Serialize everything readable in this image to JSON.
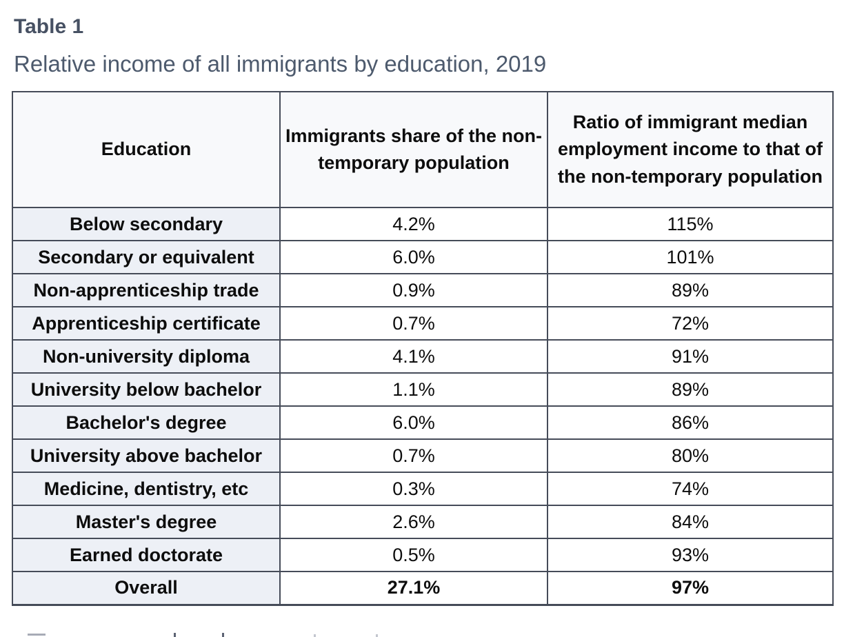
{
  "page": {
    "title": "Table 1",
    "subtitle": "Relative income of all immigrants by education, 2019"
  },
  "table": {
    "columns": [
      "Education",
      "Immigrants share of the non-temporary population",
      "Ratio of immigrant median employment income to that of the non-temporary population"
    ],
    "rows": [
      {
        "education": "Below secondary",
        "share": "4.2%",
        "ratio": "115%"
      },
      {
        "education": "Secondary or equivalent",
        "share": "6.0%",
        "ratio": "101%"
      },
      {
        "education": "Non-apprenticeship trade",
        "share": "0.9%",
        "ratio": "89%"
      },
      {
        "education": "Apprenticeship certificate",
        "share": "0.7%",
        "ratio": "72%"
      },
      {
        "education": "Non-university diploma",
        "share": "4.1%",
        "ratio": "91%"
      },
      {
        "education": "University below bachelor",
        "share": "1.1%",
        "ratio": "89%"
      },
      {
        "education": "Bachelor's degree",
        "share": "6.0%",
        "ratio": "86%"
      },
      {
        "education": "University above bachelor",
        "share": "0.7%",
        "ratio": "80%"
      },
      {
        "education": "Medicine, dentistry, etc",
        "share": "0.3%",
        "ratio": "74%"
      },
      {
        "education": "Master's degree",
        "share": "2.6%",
        "ratio": "84%"
      },
      {
        "education": "Earned doctorate",
        "share": "0.5%",
        "ratio": "93%"
      }
    ],
    "overall": {
      "education": "Overall",
      "share": "27.1%",
      "ratio": "97%"
    }
  },
  "colors": {
    "title_text": "#475163",
    "subtitle_text": "#4d5a6d",
    "table_border": "#454b58",
    "header_row_bg": "#f8f9fb",
    "label_column_bg": "#edf0f6",
    "cell_text": "#0d0d0d",
    "page_bg": "#ffffff"
  }
}
